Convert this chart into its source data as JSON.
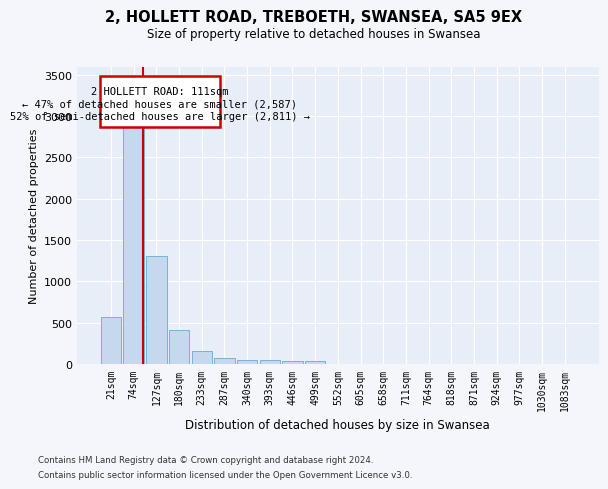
{
  "title": "2, HOLLETT ROAD, TREBOETH, SWANSEA, SA5 9EX",
  "subtitle": "Size of property relative to detached houses in Swansea",
  "xlabel": "Distribution of detached houses by size in Swansea",
  "ylabel": "Number of detached properties",
  "bar_color": "#c5d8ee",
  "bar_edge_color": "#6aaad4",
  "highlight_color": "#cc0000",
  "background_color": "#e8eef8",
  "grid_color": "#ffffff",
  "categories": [
    "21sqm",
    "74sqm",
    "127sqm",
    "180sqm",
    "233sqm",
    "287sqm",
    "340sqm",
    "393sqm",
    "446sqm",
    "499sqm",
    "552sqm",
    "605sqm",
    "658sqm",
    "711sqm",
    "764sqm",
    "818sqm",
    "871sqm",
    "924sqm",
    "977sqm",
    "1030sqm",
    "1083sqm"
  ],
  "values": [
    570,
    2910,
    1310,
    410,
    155,
    80,
    55,
    50,
    40,
    35,
    0,
    0,
    0,
    0,
    0,
    0,
    0,
    0,
    0,
    0,
    0
  ],
  "ylim": [
    0,
    3600
  ],
  "yticks": [
    0,
    500,
    1000,
    1500,
    2000,
    2500,
    3000,
    3500
  ],
  "property_label": "2 HOLLETT ROAD: 111sqm",
  "annotation_line1": "← 47% of detached houses are smaller (2,587)",
  "annotation_line2": "52% of semi-detached houses are larger (2,811) →",
  "vline_x": 1.42,
  "footer1": "Contains HM Land Registry data © Crown copyright and database right 2024.",
  "footer2": "Contains public sector information licensed under the Open Government Licence v3.0.",
  "fig_bg": "#f4f6fb"
}
